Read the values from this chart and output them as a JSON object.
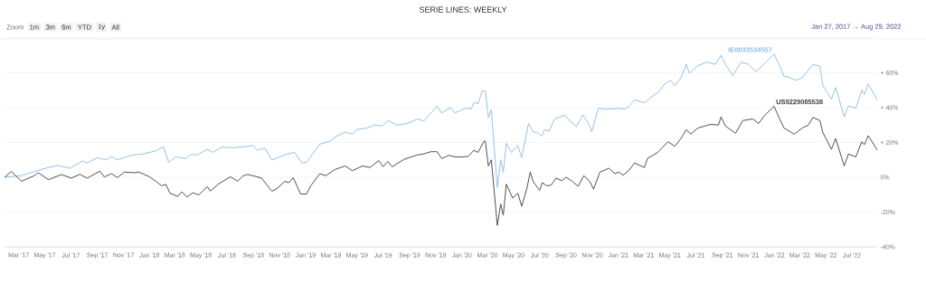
{
  "chart_data": {
    "type": "line",
    "title": "SERIE LINES: WEEKLY",
    "annotations": [
      "Zoom",
      "1m",
      "3m",
      "6m",
      "YTD",
      "1y",
      "All",
      "Jan 27, 2017 → Aug 29, 2022"
    ],
    "xlim": [
      "2017-01-27",
      "2022-08-29"
    ],
    "xticks": [
      {
        "value": "2017-03-01",
        "label": "Mar '17"
      },
      {
        "value": "2017-05-01",
        "label": "May '17"
      },
      {
        "value": "2017-07-01",
        "label": "Jul '17"
      },
      {
        "value": "2017-09-01",
        "label": "Sep '17"
      },
      {
        "value": "2017-11-01",
        "label": "Nov '17"
      },
      {
        "value": "2018-01-01",
        "label": "Jan '18"
      },
      {
        "value": "2018-03-01",
        "label": "Mar '18"
      },
      {
        "value": "2018-05-01",
        "label": "May '18"
      },
      {
        "value": "2018-07-01",
        "label": "Jul '18"
      },
      {
        "value": "2018-09-01",
        "label": "Sep '18"
      },
      {
        "value": "2018-11-01",
        "label": "Nov '18"
      },
      {
        "value": "2019-01-01",
        "label": "Jan '19"
      },
      {
        "value": "2019-03-01",
        "label": "Mar '19"
      },
      {
        "value": "2019-05-01",
        "label": "May '19"
      },
      {
        "value": "2019-07-01",
        "label": "Jul '19"
      },
      {
        "value": "2019-09-01",
        "label": "Sep '19"
      },
      {
        "value": "2019-11-01",
        "label": "Nov '19"
      },
      {
        "value": "2020-01-01",
        "label": "Jan '20"
      },
      {
        "value": "2020-03-01",
        "label": "Mar '20"
      },
      {
        "value": "2020-05-01",
        "label": "May '20"
      },
      {
        "value": "2020-07-01",
        "label": "Jul '20"
      },
      {
        "value": "2020-09-01",
        "label": "Sep '20"
      },
      {
        "value": "2020-11-01",
        "label": "Nov '20"
      },
      {
        "value": "2021-01-01",
        "label": "Jan '21"
      },
      {
        "value": "2021-03-01",
        "label": "Mar '21"
      },
      {
        "value": "2021-05-01",
        "label": "May '21"
      },
      {
        "value": "2021-07-01",
        "label": "Jul '21"
      },
      {
        "value": "2021-09-01",
        "label": "Sep '21"
      },
      {
        "value": "2021-11-01",
        "label": "Nov '21"
      },
      {
        "value": "2022-01-01",
        "label": "Jan '22"
      },
      {
        "value": "2022-03-01",
        "label": "Mar '22"
      },
      {
        "value": "2022-05-01",
        "label": "May '22"
      },
      {
        "value": "2022-07-01",
        "label": "Jul '22"
      }
    ],
    "ylim": [
      -40,
      80
    ],
    "yticks": [
      {
        "value": -40,
        "label": "-40%"
      },
      {
        "value": -20,
        "label": "-20%"
      },
      {
        "value": 0,
        "label": "0%"
      },
      {
        "value": 20,
        "label": "+ 20%"
      },
      {
        "value": 40,
        "label": "+ 40%"
      },
      {
        "value": 60,
        "label": "+ 60%"
      },
      {
        "value": 80,
        "label": null
      }
    ],
    "grid": "y",
    "marker": "none",
    "line_style": "solid",
    "series": [
      {
        "name": "IE0033534557",
        "color": "#8cb8e2",
        "x": [
          "2017-01-27",
          "2017-03-08",
          "2017-04-26",
          "2017-05-30",
          "2017-06-29",
          "2017-07-29",
          "2017-08-08",
          "2017-09-01",
          "2017-09-24",
          "2017-10-04",
          "2017-10-18",
          "2017-11-07",
          "2017-11-27",
          "2017-12-17",
          "2018-01-16",
          "2018-02-02",
          "2018-02-15",
          "2018-03-03",
          "2018-03-27",
          "2018-04-06",
          "2018-04-23",
          "2018-05-16",
          "2018-05-29",
          "2018-06-18",
          "2018-07-15",
          "2018-08-11",
          "2018-08-31",
          "2018-09-10",
          "2018-09-27",
          "2018-10-14",
          "2018-10-27",
          "2018-11-19",
          "2018-12-06",
          "2018-12-23",
          "2019-01-03",
          "2019-01-17",
          "2019-02-03",
          "2019-02-27",
          "2019-03-13",
          "2019-04-03",
          "2019-04-20",
          "2019-04-30",
          "2019-05-25",
          "2019-06-11",
          "2019-06-29",
          "2019-07-13",
          "2019-08-02",
          "2019-08-27",
          "2019-09-20",
          "2019-10-04",
          "2019-10-15",
          "2019-11-04",
          "2019-11-15",
          "2019-12-06",
          "2019-12-16",
          "2020-01-09",
          "2020-01-23",
          "2020-01-30",
          "2020-02-08",
          "2020-02-18",
          "2020-02-25",
          "2020-03-03",
          "2020-03-10",
          "2020-03-24",
          "2020-04-01",
          "2020-04-07",
          "2020-04-14",
          "2020-04-26",
          "2020-05-11",
          "2020-05-20",
          "2020-06-05",
          "2020-06-16",
          "2020-06-26",
          "2020-07-06",
          "2020-07-13",
          "2020-07-23",
          "2020-08-05",
          "2020-08-15",
          "2020-08-29",
          "2020-09-11",
          "2020-09-25",
          "2020-10-10",
          "2020-10-25",
          "2020-10-31",
          "2020-11-15",
          "2020-12-05",
          "2021-01-02",
          "2021-01-15",
          "2021-01-25",
          "2021-02-08",
          "2021-03-03",
          "2021-03-17",
          "2021-04-06",
          "2021-04-19",
          "2021-05-03",
          "2021-05-13",
          "2021-05-27",
          "2021-06-09",
          "2021-06-16",
          "2021-07-06",
          "2021-07-26",
          "2021-08-16",
          "2021-08-29",
          "2021-09-08",
          "2021-09-25",
          "2021-10-15",
          "2021-11-01",
          "2021-11-18",
          "2021-12-05",
          "2021-12-31",
          "2022-01-13",
          "2022-01-23",
          "2022-02-02",
          "2022-02-19",
          "2022-03-07",
          "2022-03-21",
          "2022-04-01",
          "2022-04-17",
          "2022-04-24",
          "2022-05-14",
          "2022-05-24",
          "2022-06-13",
          "2022-06-23",
          "2022-07-10",
          "2022-07-24",
          "2022-07-30",
          "2022-08-08",
          "2022-08-29"
        ],
        "values": [
          0,
          1,
          4.7,
          6.8,
          5.2,
          9.4,
          8.2,
          11.2,
          10,
          12,
          10,
          11.7,
          12.9,
          13.4,
          15.2,
          17.6,
          8.6,
          11.7,
          10.8,
          13,
          12.9,
          16,
          14.3,
          17.3,
          16.9,
          17.6,
          18.2,
          15.5,
          16.9,
          10,
          11.2,
          13.4,
          14.3,
          8.2,
          8.6,
          13.4,
          19,
          20.8,
          23.4,
          26,
          24.8,
          27.4,
          28.3,
          30,
          29.5,
          32.6,
          30,
          30.9,
          33.5,
          32.3,
          35.3,
          40.8,
          37,
          40.1,
          37,
          39.6,
          39.3,
          43.1,
          42.3,
          49.7,
          49.6,
          34.4,
          38.7,
          -5.8,
          10,
          3,
          19.5,
          14.3,
          18.3,
          11.3,
          30.9,
          26,
          25.7,
          23.6,
          27.4,
          26.5,
          33.5,
          34.4,
          35.6,
          32.1,
          29.1,
          35.8,
          30,
          26.2,
          39.6,
          39.1,
          39.6,
          39.1,
          40.5,
          44.5,
          42.8,
          45.7,
          49.2,
          53.6,
          55.7,
          52.7,
          57.1,
          64.9,
          59.7,
          64.1,
          66.1,
          64.9,
          70.1,
          64.9,
          58.5,
          66.1,
          64.9,
          60.6,
          64.4,
          70.7,
          64.1,
          58,
          57.6,
          55.7,
          57.1,
          61.5,
          64.9,
          63.7,
          52.7,
          44.9,
          51.5,
          34.7,
          41,
          39.6,
          50.1,
          47.5,
          53.6,
          44.5
        ]
      },
      {
        "name": "US9229085538",
        "color": "#3c3c3c",
        "x": [
          "2017-01-27",
          "2017-02-12",
          "2017-03-08",
          "2017-04-06",
          "2017-04-16",
          "2017-05-10",
          "2017-06-09",
          "2017-07-02",
          "2017-07-22",
          "2017-08-08",
          "2017-09-07",
          "2017-09-17",
          "2017-10-04",
          "2017-10-18",
          "2017-11-03",
          "2017-11-27",
          "2017-12-07",
          "2018-01-01",
          "2018-01-16",
          "2018-01-29",
          "2018-02-08",
          "2018-02-18",
          "2018-03-08",
          "2018-03-17",
          "2018-03-30",
          "2018-04-12",
          "2018-04-26",
          "2018-05-16",
          "2018-05-23",
          "2018-06-12",
          "2018-07-09",
          "2018-07-26",
          "2018-08-08",
          "2018-08-18",
          "2018-08-31",
          "2018-09-20",
          "2018-10-14",
          "2018-10-27",
          "2018-11-13",
          "2018-11-23",
          "2018-12-03",
          "2018-12-20",
          "2019-01-03",
          "2019-01-13",
          "2019-02-03",
          "2019-02-17",
          "2019-03-10",
          "2019-04-03",
          "2019-04-20",
          "2019-05-14",
          "2019-05-31",
          "2019-06-21",
          "2019-07-01",
          "2019-07-12",
          "2019-07-22",
          "2019-08-19",
          "2019-09-20",
          "2019-10-04",
          "2019-10-21",
          "2019-11-04",
          "2019-11-15",
          "2019-12-02",
          "2019-12-16",
          "2020-01-01",
          "2020-01-16",
          "2020-01-29",
          "2020-02-08",
          "2020-02-22",
          "2020-02-25",
          "2020-03-03",
          "2020-03-10",
          "2020-03-24",
          "2020-04-01",
          "2020-04-07",
          "2020-04-14",
          "2020-04-29",
          "2020-05-11",
          "2020-05-20",
          "2020-06-01",
          "2020-06-09",
          "2020-06-16",
          "2020-07-01",
          "2020-07-07",
          "2020-07-18",
          "2020-07-28",
          "2020-08-08",
          "2020-08-22",
          "2020-09-01",
          "2020-09-15",
          "2020-09-29",
          "2020-10-12",
          "2020-10-26",
          "2020-11-04",
          "2020-11-19",
          "2020-12-10",
          "2020-12-24",
          "2021-01-02",
          "2021-01-12",
          "2021-01-25",
          "2021-02-08",
          "2021-03-03",
          "2021-03-10",
          "2021-04-03",
          "2021-04-27",
          "2021-05-13",
          "2021-05-27",
          "2021-06-09",
          "2021-06-19",
          "2021-07-06",
          "2021-08-05",
          "2021-08-23",
          "2021-08-29",
          "2021-09-08",
          "2021-10-02",
          "2021-10-19",
          "2021-11-11",
          "2021-11-25",
          "2021-12-08",
          "2021-12-31",
          "2022-01-13",
          "2022-01-23",
          "2022-02-16",
          "2022-03-07",
          "2022-03-21",
          "2022-04-01",
          "2022-04-17",
          "2022-04-24",
          "2022-05-14",
          "2022-05-24",
          "2022-06-13",
          "2022-06-23",
          "2022-07-10",
          "2022-07-24",
          "2022-07-30",
          "2022-08-08",
          "2022-08-29"
        ],
        "values": [
          0,
          3.3,
          -2.3,
          0.9,
          2.6,
          -1.4,
          1.6,
          -0.5,
          1.7,
          -0.5,
          3.5,
          0.2,
          2.1,
          -0.2,
          3,
          2.6,
          3,
          0.3,
          -2.3,
          -4.9,
          -4,
          -9.2,
          -11,
          -8.4,
          -11.3,
          -8.9,
          -10.1,
          -5.4,
          -7.9,
          -3.7,
          0.3,
          -2.3,
          0.9,
          1.6,
          0.9,
          -0.5,
          -8,
          -6.3,
          -2.3,
          -3.1,
          -0.2,
          -9.6,
          -9.6,
          -4.9,
          2.1,
          0.9,
          4.4,
          6.5,
          3.8,
          6.5,
          5.6,
          9.6,
          6.1,
          9.1,
          6.1,
          10.3,
          12.9,
          13.4,
          14.7,
          14.7,
          10.8,
          12.6,
          11.7,
          11.7,
          12,
          15.5,
          14.3,
          20.8,
          20.8,
          6.5,
          10,
          -27.6,
          -15.4,
          -21.8,
          -4,
          -11.9,
          -9.2,
          -16.6,
          -6.6,
          3,
          -2.6,
          -7.5,
          -3.1,
          -4.9,
          -4.5,
          -0.5,
          -1.9,
          0,
          -2.3,
          -5.2,
          0.9,
          -2.3,
          -6.8,
          3,
          5.2,
          2.1,
          3,
          1.2,
          3.8,
          8.2,
          5.6,
          10.8,
          14.3,
          20.4,
          17.8,
          22.2,
          27.4,
          24.8,
          28.3,
          30.4,
          30,
          34.7,
          29.5,
          25.3,
          32.6,
          33.5,
          30.9,
          35.3,
          40.8,
          33.5,
          28.3,
          24.8,
          28.3,
          30,
          34.4,
          32.6,
          25.7,
          16.1,
          22.2,
          6.5,
          13.4,
          11.7,
          20.4,
          18.7,
          23.9,
          15.7
        ]
      }
    ]
  }
}
